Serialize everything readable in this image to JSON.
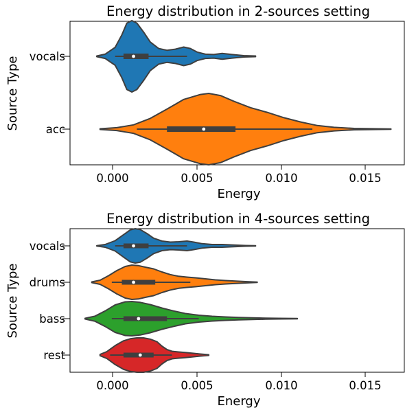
{
  "chart_data": [
    {
      "type": "violin",
      "title": "Energy distribution in 2-sources setting",
      "xlabel": "Energy",
      "ylabel": "Source Type",
      "xlim": [
        -0.0025,
        0.0175
      ],
      "xticks": [
        "0.000",
        "0.005",
        "0.010",
        "0.015"
      ],
      "xtick_values": [
        0.0,
        0.005,
        0.01,
        0.015
      ],
      "grid": false,
      "categories": [
        "vocals",
        "acc"
      ],
      "series": [
        {
          "color": "#1f77b4",
          "range": [
            -0.0009,
            0.0086
          ],
          "whisker": [
            0.0002,
            0.0045
          ],
          "quartiles": [
            0.0007,
            0.0022
          ],
          "median": 0.0013,
          "density_profile": [
            [
              -0.0009,
              0.01
            ],
            [
              -0.0004,
              0.06
            ],
            [
              0.0002,
              0.25
            ],
            [
              0.0006,
              0.6
            ],
            [
              0.0009,
              0.93
            ],
            [
              0.0012,
              1.0
            ],
            [
              0.0015,
              0.93
            ],
            [
              0.0019,
              0.68
            ],
            [
              0.0023,
              0.4
            ],
            [
              0.0028,
              0.22
            ],
            [
              0.0033,
              0.17
            ],
            [
              0.0038,
              0.2
            ],
            [
              0.0043,
              0.26
            ],
            [
              0.0047,
              0.22
            ],
            [
              0.0051,
              0.12
            ],
            [
              0.0056,
              0.06
            ],
            [
              0.0061,
              0.05
            ],
            [
              0.0066,
              0.08
            ],
            [
              0.0072,
              0.05
            ],
            [
              0.0079,
              0.02
            ],
            [
              0.0086,
              0.01
            ]
          ]
        },
        {
          "color": "#ff7f0e",
          "range": [
            -0.0007,
            0.0167
          ],
          "whisker": [
            0.0015,
            0.012
          ],
          "quartiles": [
            0.0033,
            0.0074
          ],
          "median": 0.0055,
          "density_profile": [
            [
              -0.0007,
              0.01
            ],
            [
              0.0003,
              0.04
            ],
            [
              0.0013,
              0.12
            ],
            [
              0.0023,
              0.3
            ],
            [
              0.0033,
              0.56
            ],
            [
              0.0043,
              0.83
            ],
            [
              0.0053,
              0.97
            ],
            [
              0.0058,
              1.0
            ],
            [
              0.0065,
              0.94
            ],
            [
              0.0073,
              0.78
            ],
            [
              0.0083,
              0.6
            ],
            [
              0.0093,
              0.47
            ],
            [
              0.0103,
              0.32
            ],
            [
              0.0113,
              0.2
            ],
            [
              0.0123,
              0.1
            ],
            [
              0.0133,
              0.05
            ],
            [
              0.0145,
              0.02
            ],
            [
              0.0167,
              0.005
            ]
          ]
        }
      ]
    },
    {
      "type": "violin",
      "title": "Energy distribution in 4-sources setting",
      "xlabel": "Energy",
      "ylabel": "Source Type",
      "xlim": [
        -0.0025,
        0.0175
      ],
      "xticks": [
        "0.000",
        "0.005",
        "0.010",
        "0.015"
      ],
      "xtick_values": [
        0.0,
        0.005,
        0.01,
        0.015
      ],
      "grid": false,
      "categories": [
        "vocals",
        "drums",
        "bass",
        "rest"
      ],
      "series": [
        {
          "color": "#1f77b4",
          "range": [
            -0.0009,
            0.0086
          ],
          "whisker": [
            0.0002,
            0.0045
          ],
          "quartiles": [
            0.0007,
            0.0022
          ],
          "median": 0.0013,
          "density_profile": [
            [
              -0.0009,
              0.01
            ],
            [
              -0.0004,
              0.08
            ],
            [
              0.0002,
              0.3
            ],
            [
              0.0007,
              0.65
            ],
            [
              0.0011,
              0.93
            ],
            [
              0.0014,
              1.0
            ],
            [
              0.0017,
              0.95
            ],
            [
              0.0021,
              0.72
            ],
            [
              0.0025,
              0.45
            ],
            [
              0.003,
              0.28
            ],
            [
              0.0035,
              0.22
            ],
            [
              0.004,
              0.24
            ],
            [
              0.0045,
              0.28
            ],
            [
              0.0049,
              0.22
            ],
            [
              0.0054,
              0.13
            ],
            [
              0.006,
              0.08
            ],
            [
              0.0066,
              0.08
            ],
            [
              0.0073,
              0.05
            ],
            [
              0.008,
              0.02
            ],
            [
              0.0086,
              0.01
            ]
          ]
        },
        {
          "color": "#ff7f0e",
          "range": [
            -0.0012,
            0.0087
          ],
          "whisker": [
            0.0,
            0.0047
          ],
          "quartiles": [
            0.0006,
            0.0026
          ],
          "median": 0.0013,
          "density_profile": [
            [
              -0.0012,
              0.02
            ],
            [
              -0.0007,
              0.12
            ],
            [
              -0.0002,
              0.38
            ],
            [
              0.0003,
              0.68
            ],
            [
              0.0008,
              0.92
            ],
            [
              0.0012,
              1.0
            ],
            [
              0.0016,
              0.97
            ],
            [
              0.002,
              0.88
            ],
            [
              0.0025,
              0.78
            ],
            [
              0.003,
              0.6
            ],
            [
              0.0035,
              0.45
            ],
            [
              0.004,
              0.35
            ],
            [
              0.0045,
              0.3
            ],
            [
              0.005,
              0.26
            ],
            [
              0.0056,
              0.2
            ],
            [
              0.0062,
              0.14
            ],
            [
              0.0068,
              0.1
            ],
            [
              0.0074,
              0.07
            ],
            [
              0.008,
              0.04
            ],
            [
              0.0087,
              0.01
            ]
          ]
        },
        {
          "color": "#2ca02c",
          "range": [
            -0.0016,
            0.0111
          ],
          "whisker": [
            0.0,
            0.0052
          ],
          "quartiles": [
            0.0007,
            0.0033
          ],
          "median": 0.0016,
          "density_profile": [
            [
              -0.0016,
              0.02
            ],
            [
              -0.001,
              0.15
            ],
            [
              -0.0004,
              0.45
            ],
            [
              0.0002,
              0.8
            ],
            [
              0.0008,
              0.98
            ],
            [
              0.0012,
              1.0
            ],
            [
              0.0017,
              0.95
            ],
            [
              0.0023,
              0.82
            ],
            [
              0.003,
              0.62
            ],
            [
              0.0037,
              0.45
            ],
            [
              0.0044,
              0.3
            ],
            [
              0.0052,
              0.2
            ],
            [
              0.006,
              0.14
            ],
            [
              0.0068,
              0.1
            ],
            [
              0.0076,
              0.07
            ],
            [
              0.0084,
              0.05
            ],
            [
              0.0092,
              0.03
            ],
            [
              0.01,
              0.02
            ],
            [
              0.0111,
              0.01
            ]
          ]
        },
        {
          "color": "#d62728",
          "range": [
            -0.0007,
            0.0058
          ],
          "whisker": [
            -0.0001,
            0.0036
          ],
          "quartiles": [
            0.0007,
            0.0025
          ],
          "median": 0.0017,
          "density_profile": [
            [
              -0.0007,
              0.04
            ],
            [
              -0.0003,
              0.2
            ],
            [
              0.0002,
              0.55
            ],
            [
              0.0007,
              0.83
            ],
            [
              0.0011,
              0.95
            ],
            [
              0.0015,
              1.0
            ],
            [
              0.0019,
              1.0
            ],
            [
              0.0023,
              0.93
            ],
            [
              0.0027,
              0.78
            ],
            [
              0.003,
              0.52
            ],
            [
              0.0033,
              0.32
            ],
            [
              0.0036,
              0.22
            ],
            [
              0.004,
              0.18
            ],
            [
              0.0044,
              0.15
            ],
            [
              0.0048,
              0.11
            ],
            [
              0.0053,
              0.06
            ],
            [
              0.0058,
              0.02
            ]
          ]
        }
      ]
    }
  ]
}
